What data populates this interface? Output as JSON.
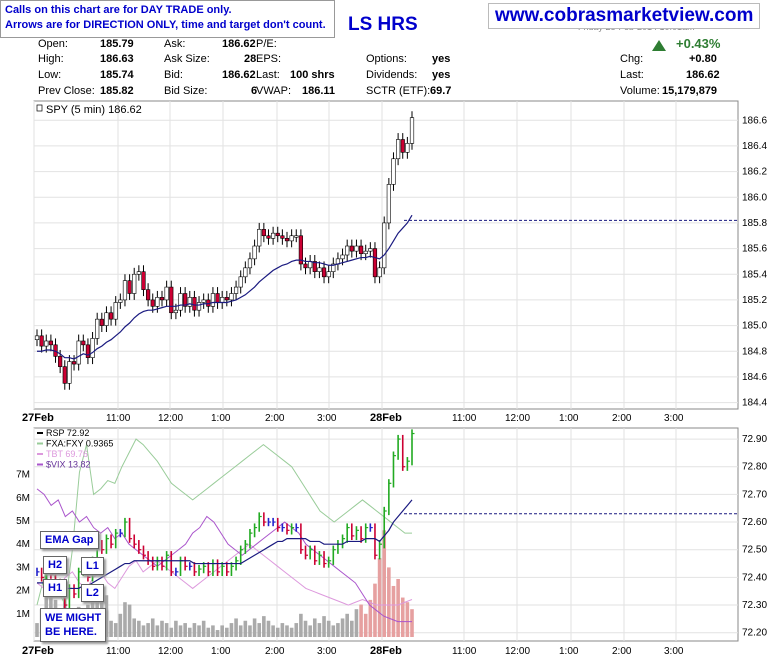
{
  "notice": {
    "line1": "Calls on this chart are for DAY TRADE only.",
    "line2": "Arrows are for DIRECTION ONLY, time and target don't count."
  },
  "site": "www.cobrasmarketview.com",
  "title_fragment": "LS HRS",
  "date_stamp": "Friday 28-Feb-2014 10:01am",
  "quote": {
    "open_label": "Open:",
    "open": "185.79",
    "high_label": "High:",
    "high": "186.63",
    "low_label": "Low:",
    "low": "185.74",
    "prev_label": "Prev Close:",
    "prev": "185.82",
    "ask_label": "Ask:",
    "ask": "186.62",
    "asksize_label": "Ask Size:",
    "asksize": "28",
    "bid_label": "Bid:",
    "bid": "186.62",
    "bidsize_label": "Bid Size:",
    "bidsize": "6",
    "pe_label": "P/E:",
    "pe": "",
    "eps_label": "EPS:",
    "eps": "",
    "last_label": "Last:",
    "last": "100 shrs",
    "vwap_label": "VWAP:",
    "vwap": "186.11",
    "options_label": "Options:",
    "options": "yes",
    "dividends_label": "Dividends:",
    "dividends": "yes",
    "sctr_label": "SCTR (ETF):",
    "sctr": "69.7",
    "pct_change": "+0.43%",
    "chg_label": "Chg:",
    "chg": "+0.80",
    "last2_label": "Last:",
    "last2": "186.62",
    "volume_label": "Volume:",
    "volume": "15,179,879"
  },
  "annotations": {
    "ema_gap": "EMA Gap",
    "h2": "H2",
    "h1": "H1",
    "l1": "L1",
    "l2": "L2",
    "might1": "WE MIGHT",
    "might2": "BE HERE."
  },
  "colors": {
    "up": "#ffffff",
    "down": "#cc0033",
    "ema": "#1a1a80",
    "dash": "#1a1a80",
    "rsp_up": "#22aa22",
    "rsp_down": "#cc0033",
    "rsp_flat": "#2222cc",
    "fxa": "#99cc99",
    "tbt": "#dd99dd",
    "vix": "#aa55cc",
    "vol_grey": "#aaaaaa",
    "vol_red": "#e6a0a0"
  },
  "chart_data": [
    {
      "type": "candlestick",
      "legend": "SPY (5 min) 186.62",
      "ylim": [
        184.35,
        186.75
      ],
      "yticks": [
        "184.4",
        "184.6",
        "184.8",
        "185.0",
        "185.2",
        "185.4",
        "185.6",
        "185.8",
        "186.0",
        "186.2",
        "186.4",
        "186.6"
      ],
      "xticks": [
        "27Feb",
        "11:00",
        "12:00",
        "1:00",
        "2:00",
        "3:00",
        "28Feb",
        "11:00",
        "12:00",
        "1:00",
        "2:00",
        "3:00"
      ],
      "reference_line": 185.82,
      "closes": [
        184.92,
        184.84,
        184.88,
        184.85,
        184.76,
        184.68,
        184.55,
        184.72,
        184.7,
        184.88,
        184.85,
        184.75,
        184.9,
        185.05,
        185.0,
        185.1,
        185.05,
        185.18,
        185.2,
        185.35,
        185.25,
        185.4,
        185.42,
        185.28,
        185.2,
        185.15,
        185.22,
        185.2,
        185.3,
        185.1,
        185.12,
        185.25,
        185.15,
        185.22,
        185.12,
        185.18,
        185.2,
        185.15,
        185.25,
        185.18,
        185.22,
        185.2,
        185.25,
        185.3,
        185.38,
        185.45,
        185.52,
        185.62,
        185.75,
        185.7,
        185.68,
        185.72,
        185.7,
        185.68,
        185.66,
        185.7,
        185.7,
        185.48,
        185.45,
        185.5,
        185.42,
        185.45,
        185.38,
        185.42,
        185.48,
        185.52,
        185.55,
        185.62,
        185.58,
        185.62,
        185.56,
        185.58,
        185.6,
        185.38,
        185.45,
        185.8,
        186.1,
        186.3,
        186.45,
        186.35,
        186.42,
        186.62
      ],
      "ema": [
        184.8,
        184.8,
        184.81,
        184.81,
        184.8,
        184.78,
        184.75,
        184.75,
        184.74,
        184.76,
        184.78,
        184.77,
        184.79,
        184.82,
        184.84,
        184.87,
        184.89,
        184.92,
        184.95,
        184.99,
        185.02,
        185.06,
        185.09,
        185.11,
        185.12,
        185.12,
        185.13,
        185.14,
        185.15,
        185.15,
        185.15,
        185.16,
        185.16,
        185.17,
        185.16,
        185.16,
        185.17,
        185.17,
        185.18,
        185.18,
        185.18,
        185.18,
        185.19,
        185.2,
        185.22,
        185.24,
        185.27,
        185.3,
        185.34,
        185.37,
        185.4,
        185.43,
        185.45,
        185.47,
        185.48,
        185.5,
        185.51,
        185.51,
        185.5,
        185.5,
        185.49,
        185.49,
        185.48,
        185.47,
        185.47,
        185.48,
        185.49,
        185.5,
        185.51,
        185.52,
        185.53,
        185.53,
        185.54,
        185.53,
        185.52,
        185.55,
        185.6,
        185.66,
        185.72,
        185.76,
        185.8,
        185.86
      ]
    },
    {
      "type": "line",
      "legend": [
        "RSP 72.92",
        "FXA:FXY 0.9365",
        "TBT 69.76",
        "$VIX 13.82"
      ],
      "ylim": [
        72.17,
        72.94
      ],
      "yticks": [
        "72.20",
        "72.30",
        "72.40",
        "72.50",
        "72.60",
        "72.70",
        "72.80",
        "72.90"
      ],
      "volume_ticks": [
        "1M",
        "2M",
        "3M",
        "4M",
        "5M",
        "6M",
        "7M"
      ],
      "reference_line": 72.63,
      "rsp": [
        72.42,
        72.4,
        72.44,
        72.41,
        72.38,
        72.35,
        72.3,
        72.36,
        72.34,
        72.42,
        72.45,
        72.4,
        72.46,
        72.52,
        72.5,
        72.54,
        72.52,
        72.56,
        72.56,
        72.6,
        72.54,
        72.52,
        72.5,
        72.48,
        72.46,
        72.44,
        72.46,
        72.44,
        72.48,
        72.42,
        72.42,
        72.46,
        72.44,
        72.44,
        72.42,
        72.43,
        72.44,
        72.42,
        72.45,
        72.42,
        72.44,
        72.42,
        72.44,
        72.46,
        72.5,
        72.52,
        72.56,
        72.58,
        72.62,
        72.6,
        72.6,
        72.6,
        72.58,
        72.58,
        72.57,
        72.58,
        72.58,
        72.5,
        72.48,
        72.5,
        72.46,
        72.48,
        72.45,
        72.46,
        72.5,
        72.52,
        72.54,
        72.58,
        72.55,
        72.57,
        72.54,
        72.58,
        72.58,
        72.48,
        72.52,
        72.64,
        72.74,
        72.84,
        72.9,
        72.8,
        72.82,
        72.92
      ],
      "rsp_ema": [
        72.38,
        72.38,
        72.38,
        72.38,
        72.38,
        72.37,
        72.36,
        72.36,
        72.36,
        72.36,
        72.37,
        72.37,
        72.38,
        72.39,
        72.4,
        72.41,
        72.42,
        72.43,
        72.44,
        72.45,
        72.45,
        72.46,
        72.46,
        72.46,
        72.46,
        72.46,
        72.46,
        72.46,
        72.46,
        72.46,
        72.46,
        72.46,
        72.46,
        72.46,
        72.45,
        72.45,
        72.45,
        72.45,
        72.45,
        72.45,
        72.45,
        72.45,
        72.45,
        72.45,
        72.45,
        72.46,
        72.47,
        72.48,
        72.49,
        72.5,
        72.51,
        72.52,
        72.53,
        72.53,
        72.54,
        72.54,
        72.54,
        72.54,
        72.54,
        72.53,
        72.53,
        72.53,
        72.52,
        72.52,
        72.52,
        72.52,
        72.52,
        72.53,
        72.53,
        72.53,
        72.53,
        72.54,
        72.54,
        72.54,
        72.53,
        72.55,
        72.57,
        72.6,
        72.62,
        72.64,
        72.66,
        72.68
      ],
      "fxa": [
        72.3,
        72.4,
        72.45,
        72.35,
        72.3,
        72.5,
        72.78,
        72.88,
        72.7,
        72.72,
        72.75,
        72.74,
        72.8,
        72.85,
        72.9,
        72.88,
        72.85,
        72.82,
        72.78,
        72.74,
        72.72,
        72.7,
        72.68,
        72.7,
        72.72,
        72.74,
        72.76,
        72.78,
        72.8,
        72.82,
        72.84,
        72.86,
        72.88,
        72.86,
        72.84,
        72.82,
        72.8,
        72.76,
        72.72,
        72.68,
        72.64,
        72.62,
        72.6,
        72.62,
        72.64,
        72.66,
        72.68,
        72.66,
        72.64,
        72.62,
        72.6,
        72.58,
        72.56,
        72.56
      ],
      "tbt": [
        72.38,
        72.36,
        72.34,
        72.36,
        72.4,
        72.42,
        72.38,
        72.36,
        72.4,
        72.42,
        72.38,
        72.36,
        72.4,
        72.44,
        72.46,
        72.42,
        72.44,
        72.46,
        72.44,
        72.42,
        72.4,
        72.38,
        72.36,
        72.38,
        72.4,
        72.42,
        72.44,
        72.46,
        72.48,
        72.5,
        72.52,
        72.5,
        72.48,
        72.46,
        72.44,
        72.42,
        72.4,
        72.38,
        72.36,
        72.35,
        72.34,
        72.33,
        72.32,
        72.31,
        72.3,
        72.31,
        72.32,
        72.31,
        72.3,
        72.3,
        72.3,
        72.3,
        72.31,
        72.32
      ],
      "vix": [
        72.72,
        72.7,
        72.66,
        72.68,
        72.62,
        72.64,
        72.6,
        72.62,
        72.58,
        72.56,
        72.58,
        72.54,
        72.56,
        72.52,
        72.5,
        72.48,
        72.46,
        72.44,
        72.46,
        72.48,
        72.5,
        72.52,
        72.56,
        72.58,
        72.62,
        72.6,
        72.56,
        72.52,
        72.5,
        72.48,
        72.5,
        72.52,
        72.54,
        72.56,
        72.58,
        72.6,
        72.58,
        72.56,
        72.52,
        72.5,
        72.48,
        72.46,
        72.44,
        72.42,
        72.4,
        72.38,
        72.34,
        72.3,
        72.28,
        72.26,
        72.25,
        72.24,
        72.24,
        72.24
      ],
      "volume": [
        0.6,
        1.2,
        2.8,
        2.3,
        1.6,
        1.2,
        1.8,
        0.9,
        1.0,
        1.3,
        1.1,
        1.4,
        2.1,
        1.6,
        2.2,
        1.8,
        0.7,
        0.6,
        1.0,
        1.5,
        1.4,
        0.8,
        0.7,
        0.5,
        0.6,
        0.8,
        0.5,
        0.7,
        0.6,
        0.4,
        0.7,
        0.5,
        0.6,
        0.4,
        0.6,
        0.5,
        0.7,
        0.4,
        0.5,
        0.3,
        0.5,
        0.4,
        0.6,
        0.8,
        0.5,
        0.7,
        0.5,
        0.8,
        0.6,
        0.9,
        0.7,
        0.5,
        0.4,
        0.6,
        0.5,
        0.4,
        0.6,
        1.0,
        0.7,
        0.5,
        0.8,
        0.6,
        0.9,
        0.7,
        0.5,
        0.6,
        0.8,
        1.0,
        0.7,
        1.2,
        1.4,
        1.0,
        1.6,
        2.3,
        3.4,
        4.6,
        3.0,
        2.2,
        2.5,
        1.7,
        1.5,
        1.2
      ]
    }
  ]
}
